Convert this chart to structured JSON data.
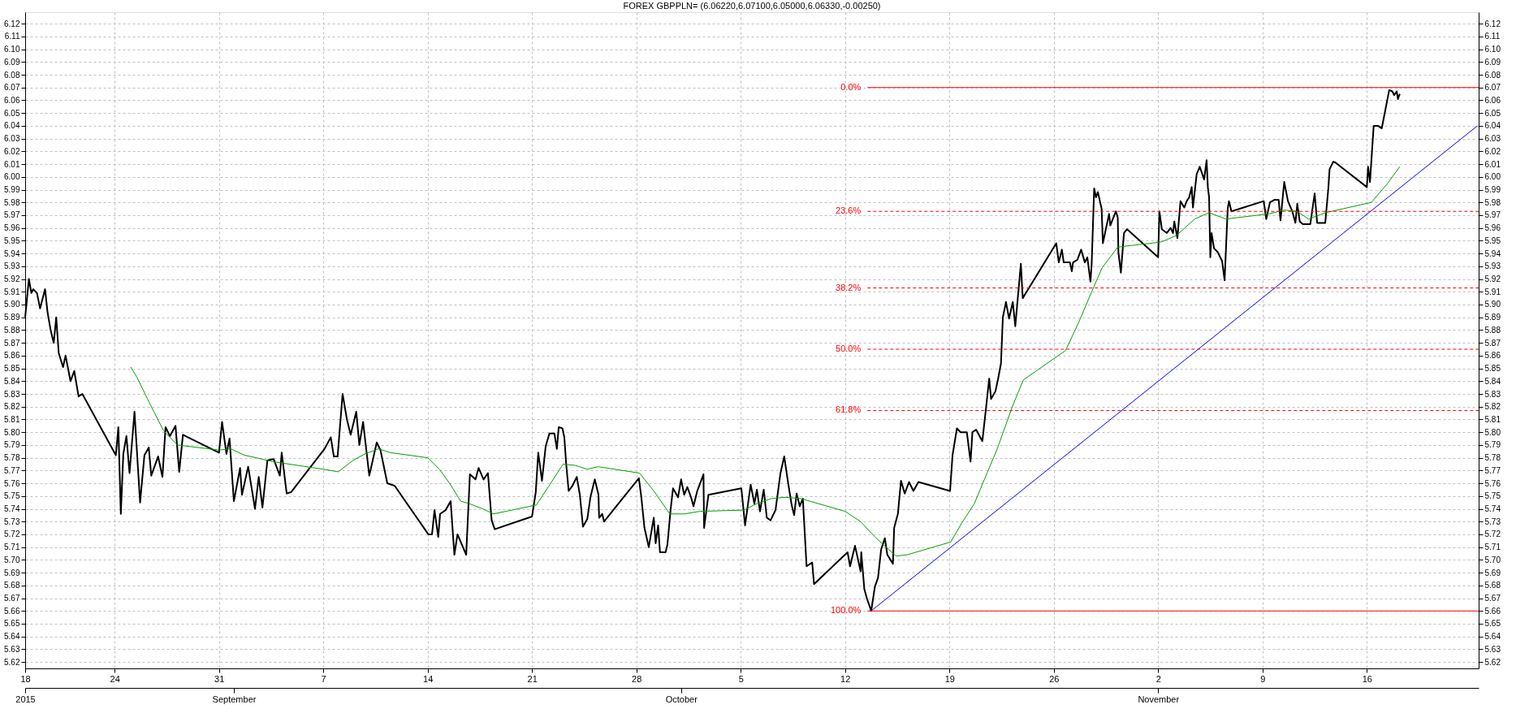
{
  "chart_data": {
    "type": "line",
    "title": "FOREX GBPPLN= (6.06220,6.07100,6.05000,6.06330,-0.00250)",
    "xlim": [
      "2015-08-18T00:00",
      "2015-11-23T12:00"
    ],
    "ylim": [
      5.615,
      6.129
    ],
    "grid": true,
    "xticks": [
      {
        "value": "2015-08-18",
        "label": "18"
      },
      {
        "value": "2015-08-24",
        "label": "24"
      },
      {
        "value": "2015-08-31",
        "label": "31"
      },
      {
        "value": "2015-09-07",
        "label": "7"
      },
      {
        "value": "2015-09-14",
        "label": "14"
      },
      {
        "value": "2015-09-21",
        "label": "21"
      },
      {
        "value": "2015-09-28",
        "label": "28"
      },
      {
        "value": "2015-10-05",
        "label": "5"
      },
      {
        "value": "2015-10-12",
        "label": "12"
      },
      {
        "value": "2015-10-19",
        "label": "19"
      },
      {
        "value": "2015-10-26",
        "label": "26"
      },
      {
        "value": "2015-11-02",
        "label": "2"
      },
      {
        "value": "2015-11-09",
        "label": "9"
      },
      {
        "value": "2015-11-16",
        "label": "16"
      }
    ],
    "yticks": [
      5.62,
      5.63,
      5.64,
      5.65,
      5.66,
      5.67,
      5.68,
      5.69,
      {
        "value": 5.7,
        "label": "5.70"
      },
      5.71,
      5.72,
      5.73,
      5.74,
      5.75,
      5.76,
      5.77,
      5.78,
      5.79,
      {
        "value": 5.8,
        "label": "5.80"
      },
      5.81,
      5.82,
      5.83,
      5.84,
      5.85,
      5.86,
      5.87,
      5.88,
      5.89,
      {
        "value": 5.9,
        "label": "5.90"
      },
      5.91,
      5.92,
      5.93,
      5.94,
      5.95,
      5.96,
      5.97,
      5.98,
      5.99,
      {
        "value": 6.0,
        "label": "6.00"
      },
      6.01,
      6.02,
      6.03,
      6.04,
      6.05,
      6.06,
      6.07,
      6.08,
      6.09,
      {
        "value": 6.1,
        "label": "6.10"
      },
      6.11,
      6.12
    ],
    "y2lim": [
      5.615,
      6.129
    ],
    "y2ticks": [
      5.62,
      5.63,
      5.64,
      5.65,
      5.66,
      5.67,
      5.68,
      5.69,
      {
        "value": 5.7,
        "label": "5.70"
      },
      5.71,
      5.72,
      5.73,
      5.74,
      5.75,
      5.76,
      5.77,
      5.78,
      5.79,
      {
        "value": 5.8,
        "label": "5.80"
      },
      5.81,
      5.82,
      5.83,
      5.84,
      5.85,
      5.86,
      5.87,
      5.88,
      5.89,
      {
        "value": 5.9,
        "label": "5.90"
      },
      5.91,
      5.92,
      5.93,
      5.94,
      5.95,
      5.96,
      5.97,
      5.98,
      5.99,
      {
        "value": 6.0,
        "label": "6.00"
      },
      6.01,
      6.02,
      6.03,
      6.04,
      6.05,
      6.06,
      6.07,
      6.08,
      6.09,
      {
        "value": 6.1,
        "label": "6.10"
      },
      6.11,
      6.12
    ],
    "x2lim": [
      "2015-08-18T00:00",
      "2015-11-23T12:00"
    ],
    "x2ticks": [
      {
        "value": "2015-08-18",
        "label": "2015"
      },
      {
        "value": "2015-09-01",
        "label": "September"
      },
      {
        "value": "2015-10-01",
        "label": "October"
      },
      {
        "value": "2015-11-02",
        "label": "November"
      }
    ],
    "series": [
      {
        "line_style": "solid",
        "color": "#000000",
        "x": [
          "2015-08-18T00:00",
          "2015-08-18T06:00",
          "2015-08-18T10:00",
          "2015-08-18T13:00",
          "2015-08-18T19:00",
          "2015-08-19T00:00",
          "2015-08-19T08:00",
          "2015-08-19T12:00",
          "2015-08-19T17:00",
          "2015-08-19T22:00",
          "2015-08-20T02:00",
          "2015-08-20T06:00",
          "2015-08-20T13:00",
          "2015-08-20T17:00",
          "2015-08-21T01:00",
          "2015-08-21T07:00",
          "2015-08-21T14:00",
          "2015-08-21T20:00",
          "2015-08-24T02:00",
          "2015-08-24T06:00",
          "2015-08-24T10:00",
          "2015-08-24T14:00",
          "2015-08-24T19:00",
          "2015-08-25T00:00",
          "2015-08-25T08:00",
          "2015-08-25T17:00",
          "2015-08-26T00:00",
          "2015-08-26T07:00",
          "2015-08-26T11:00",
          "2015-08-26T22:00",
          "2015-08-27T05:00",
          "2015-08-27T10:00",
          "2015-08-27T17:00",
          "2015-08-28T02:00",
          "2015-08-28T08:00",
          "2015-08-28T14:00",
          "2015-08-31T00:00",
          "2015-08-31T05:00",
          "2015-08-31T12:00",
          "2015-08-31T17:00",
          "2015-09-01T00:00",
          "2015-09-01T10:00",
          "2015-09-01T13:00",
          "2015-09-01T23:00",
          "2015-09-02T10:00",
          "2015-09-02T16:00",
          "2015-09-02T22:00",
          "2015-09-03T06:00",
          "2015-09-03T16:00",
          "2015-09-04T02:00",
          "2015-09-04T05:00",
          "2015-09-04T13:00",
          "2015-09-04T20:00",
          "2015-09-07T02:00",
          "2015-09-07T12:00",
          "2015-09-07T17:00",
          "2015-09-07T23:00",
          "2015-09-08T07:00",
          "2015-09-08T14:00",
          "2015-09-08T20:00",
          "2015-09-09T05:00",
          "2015-09-09T10:00",
          "2015-09-09T16:00",
          "2015-09-10T02:00",
          "2015-09-10T14:00",
          "2015-09-10T20:00",
          "2015-09-11T07:00",
          "2015-09-11T19:00",
          "2015-09-14T01:00",
          "2015-09-14T07:00",
          "2015-09-14T11:00",
          "2015-09-14T17:00",
          "2015-09-14T20:00",
          "2015-09-15T05:00",
          "2015-09-15T13:00",
          "2015-09-15T19:00",
          "2015-09-16T00:00",
          "2015-09-16T14:00",
          "2015-09-16T20:00",
          "2015-09-17T05:00",
          "2015-09-17T10:00",
          "2015-09-17T18:00",
          "2015-09-18T01:00",
          "2015-09-18T07:00",
          "2015-09-18T12:00",
          "2015-09-21T00:00",
          "2015-09-21T06:00",
          "2015-09-21T10:00",
          "2015-09-21T16:00",
          "2015-09-21T22:00",
          "2015-09-22T04:00",
          "2015-09-22T12:00",
          "2015-09-22T16:00",
          "2015-09-22T19:00",
          "2015-09-23T01:00",
          "2015-09-23T04:00",
          "2015-09-23T07:00",
          "2015-09-23T11:00",
          "2015-09-23T17:00",
          "2015-09-24T00:00",
          "2015-09-24T05:00",
          "2015-09-24T10:00",
          "2015-09-24T17:00",
          "2015-09-24T22:00",
          "2015-09-25T05:00",
          "2015-09-25T11:00",
          "2015-09-25T12:00",
          "2015-09-25T17:00",
          "2015-09-25T20:00",
          "2015-09-28T04:00",
          "2015-09-28T08:00",
          "2015-09-28T13:00",
          "2015-09-28T20:00",
          "2015-09-29T04:00",
          "2015-09-29T07:00",
          "2015-09-29T11:00",
          "2015-09-29T14:00",
          "2015-09-29T23:00",
          "2015-09-30T02:00",
          "2015-09-30T07:00",
          "2015-09-30T11:00",
          "2015-09-30T19:00",
          "2015-10-01T00:00",
          "2015-10-01T05:00",
          "2015-10-01T10:00",
          "2015-10-01T16:00",
          "2015-10-01T20:00",
          "2015-10-02T02:00",
          "2015-10-02T12:00",
          "2015-10-02T13:00",
          "2015-10-02T20:00",
          "2015-10-05T01:00",
          "2015-10-05T07:00",
          "2015-10-05T16:00",
          "2015-10-05T22:00",
          "2015-10-06T02:00",
          "2015-10-06T07:00",
          "2015-10-06T13:00",
          "2015-10-06T18:00",
          "2015-10-07T00:00",
          "2015-10-07T08:00",
          "2015-10-07T16:00",
          "2015-10-07T22:00",
          "2015-10-08T05:00",
          "2015-10-08T10:00",
          "2015-10-08T14:00",
          "2015-10-08T18:00",
          "2015-10-08T23:00",
          "2015-10-09T04:00",
          "2015-10-09T10:00",
          "2015-10-09T19:00",
          "2015-10-09T22:00",
          "2015-10-12T04:00",
          "2015-10-12T08:00",
          "2015-10-12T16:00",
          "2015-10-13T01:00",
          "2015-10-13T02:00",
          "2015-10-13T07:00",
          "2015-10-13T11:00",
          "2015-10-13T18:00",
          "2015-10-14T00:00",
          "2015-10-14T05:00",
          "2015-10-14T10:00",
          "2015-10-14T16:00",
          "2015-10-14T20:00",
          "2015-10-15T05:00",
          "2015-10-15T07:00",
          "2015-10-15T13:00",
          "2015-10-15T18:00",
          "2015-10-16T00:00",
          "2015-10-16T07:00",
          "2015-10-16T14:00",
          "2015-10-16T22:00",
          "2015-10-19T01:00",
          "2015-10-19T05:00",
          "2015-10-19T12:00",
          "2015-10-19T18:00",
          "2015-10-20T04:00",
          "2015-10-20T10:00",
          "2015-10-20T13:00",
          "2015-10-20T19:00",
          "2015-10-21T05:00",
          "2015-10-21T10:00",
          "2015-10-21T16:00",
          "2015-10-21T19:00",
          "2015-10-22T02:00",
          "2015-10-22T06:00",
          "2015-10-22T11:00",
          "2015-10-22T14:00",
          "2015-10-22T19:00",
          "2015-10-23T00:00",
          "2015-10-23T06:00",
          "2015-10-23T10:00",
          "2015-10-23T19:00",
          "2015-10-23T22:00",
          "2015-10-26T04:00",
          "2015-10-26T08:00",
          "2015-10-26T13:00",
          "2015-10-26T16:00",
          "2015-10-27T02:00",
          "2015-10-27T05:00",
          "2015-10-27T07:00",
          "2015-10-27T14:00",
          "2015-10-27T20:00",
          "2015-10-28T02:00",
          "2015-10-28T06:00",
          "2015-10-28T11:00",
          "2015-10-28T13:00",
          "2015-10-28T17:00",
          "2015-10-28T20:00",
          "2015-10-28T23:00",
          "2015-10-29T05:00",
          "2015-10-29T07:00",
          "2015-10-29T17:00",
          "2015-10-29T19:00",
          "2015-10-30T04:00",
          "2015-10-30T07:00",
          "2015-10-30T08:00",
          "2015-10-30T12:00",
          "2015-10-30T17:00",
          "2015-10-30T22:00",
          "2015-11-02T00:00",
          "2015-11-02T02:00",
          "2015-11-02T06:00",
          "2015-11-02T14:00",
          "2015-11-02T20:00",
          "2015-11-03T00:00",
          "2015-11-03T02:00",
          "2015-11-03T07:00",
          "2015-11-03T12:00",
          "2015-11-03T18:00",
          "2015-11-03T22:00",
          "2015-11-04T02:00",
          "2015-11-04T06:00",
          "2015-11-04T08:00",
          "2015-11-04T14:00",
          "2015-11-04T19:00",
          "2015-11-05T02:00",
          "2015-11-05T06:00",
          "2015-11-05T08:00",
          "2015-11-05T10:00",
          "2015-11-05T12:00",
          "2015-11-05T14:00",
          "2015-11-05T18:00",
          "2015-11-06T00:00",
          "2015-11-06T07:00",
          "2015-11-06T11:00",
          "2015-11-06T16:00",
          "2015-11-06T18:00",
          "2015-11-06T22:00",
          "2015-11-09T02:00",
          "2015-11-09T06:00",
          "2015-11-09T12:00",
          "2015-11-09T19:00",
          "2015-11-10T02:00",
          "2015-11-10T05:00",
          "2015-11-10T11:00",
          "2015-11-10T17:00",
          "2015-11-11T00:00",
          "2015-11-11T05:00",
          "2015-11-11T08:00",
          "2015-11-11T12:00",
          "2015-11-11T17:00",
          "2015-11-12T05:00",
          "2015-11-12T12:00",
          "2015-11-12T16:00",
          "2015-11-13T05:00",
          "2015-11-13T10:00",
          "2015-11-13T12:00",
          "2015-11-13T18:00",
          "2015-11-13T22:00",
          "2015-11-16T00:00",
          "2015-11-16T02:00",
          "2015-11-16T05:00",
          "2015-11-16T11:00",
          "2015-11-16T18:00",
          "2015-11-17T00:00",
          "2015-11-17T06:00",
          "2015-11-17T12:00",
          "2015-11-17T17:00",
          "2015-11-17T20:00",
          "2015-11-18T00:00",
          "2015-11-18T02:00",
          "2015-11-18T05:00"
        ],
        "values": [
          5.89,
          5.92,
          5.909,
          5.912,
          5.909,
          5.897,
          5.912,
          5.894,
          5.88,
          5.87,
          5.89,
          5.862,
          5.851,
          5.86,
          5.84,
          5.848,
          5.828,
          5.83,
          5.782,
          5.804,
          5.736,
          5.783,
          5.797,
          5.768,
          5.816,
          5.745,
          5.782,
          5.788,
          5.766,
          5.781,
          5.765,
          5.804,
          5.797,
          5.805,
          5.769,
          5.798,
          5.784,
          5.808,
          5.783,
          5.795,
          5.746,
          5.772,
          5.751,
          5.773,
          5.74,
          5.765,
          5.741,
          5.778,
          5.779,
          5.766,
          5.784,
          5.752,
          5.753,
          5.787,
          5.796,
          5.781,
          5.781,
          5.83,
          5.81,
          5.798,
          5.816,
          5.79,
          5.808,
          5.766,
          5.792,
          5.786,
          5.76,
          5.758,
          5.72,
          5.72,
          5.739,
          5.718,
          5.736,
          5.739,
          5.746,
          5.704,
          5.72,
          5.704,
          5.767,
          5.763,
          5.772,
          5.763,
          5.768,
          5.731,
          5.724,
          5.734,
          5.753,
          5.784,
          5.762,
          5.789,
          5.799,
          5.799,
          5.787,
          5.804,
          5.803,
          5.796,
          5.775,
          5.754,
          5.758,
          5.765,
          5.751,
          5.726,
          5.732,
          5.749,
          5.763,
          5.751,
          5.733,
          5.736,
          5.73,
          5.764,
          5.749,
          5.725,
          5.71,
          5.733,
          5.713,
          5.727,
          5.706,
          5.706,
          5.712,
          5.739,
          5.756,
          5.749,
          5.763,
          5.751,
          5.757,
          5.749,
          5.742,
          5.754,
          5.767,
          5.725,
          5.751,
          5.756,
          5.727,
          5.759,
          5.744,
          5.755,
          5.738,
          5.755,
          5.733,
          5.731,
          5.739,
          5.768,
          5.781,
          5.758,
          5.743,
          5.735,
          5.752,
          5.742,
          5.748,
          5.695,
          5.698,
          5.681,
          5.706,
          5.695,
          5.711,
          5.691,
          5.706,
          5.677,
          5.67,
          5.66,
          5.679,
          5.686,
          5.708,
          5.717,
          5.704,
          5.697,
          5.725,
          5.736,
          5.762,
          5.752,
          5.761,
          5.754,
          5.761,
          5.754,
          5.782,
          5.803,
          5.8,
          5.8,
          5.777,
          5.8,
          5.802,
          5.793,
          5.815,
          5.842,
          5.826,
          5.832,
          5.841,
          5.854,
          5.89,
          5.902,
          5.889,
          5.902,
          5.883,
          5.932,
          5.905,
          5.948,
          5.933,
          5.943,
          5.933,
          5.933,
          5.926,
          5.933,
          5.935,
          5.943,
          5.933,
          5.937,
          5.918,
          5.932,
          5.991,
          5.984,
          5.988,
          5.975,
          5.948,
          5.971,
          5.962,
          5.973,
          5.968,
          5.941,
          5.925,
          5.956,
          5.959,
          5.937,
          5.973,
          5.959,
          5.956,
          5.96,
          5.956,
          5.965,
          5.952,
          5.981,
          5.976,
          5.981,
          5.984,
          5.992,
          5.976,
          6.002,
          6.008,
          5.998,
          6.013,
          5.992,
          5.984,
          5.937,
          5.956,
          5.944,
          5.941,
          5.934,
          5.919,
          5.975,
          5.981,
          5.973,
          5.981,
          5.967,
          5.98,
          5.982,
          5.982,
          5.966,
          5.996,
          5.981,
          5.973,
          5.964,
          5.979,
          5.965,
          5.963,
          5.963,
          5.987,
          5.964,
          5.964,
          5.991,
          6.006,
          6.012,
          6.011,
          5.992,
          6.008,
          5.996,
          6.04,
          6.04,
          6.038,
          6.053,
          6.068,
          6.067,
          6.064,
          6.067,
          6.061,
          6.065
        ]
      },
      {
        "line_style": "solid",
        "color": "#00a000",
        "x": [
          "2015-08-25T02:00",
          "2015-08-25T12:00",
          "2015-08-26T07:00",
          "2015-08-27T07:00",
          "2015-08-28T05:00",
          "2015-08-31T00:00",
          "2015-08-31T19:00",
          "2015-09-01T17:00",
          "2015-09-02T12:00",
          "2015-09-03T14:00",
          "2015-09-07T00:00",
          "2015-09-08T00:00",
          "2015-09-09T00:00",
          "2015-09-09T19:00",
          "2015-09-10T17:00",
          "2015-09-11T12:00",
          "2015-09-14T00:00",
          "2015-09-14T19:00",
          "2015-09-15T14:00",
          "2015-09-16T05:00",
          "2015-09-16T19:00",
          "2015-09-17T17:00",
          "2015-09-18T10:00",
          "2015-09-21T07:00",
          "2015-09-22T02:00",
          "2015-09-23T02:00",
          "2015-09-23T22:00",
          "2015-09-24T17:00",
          "2015-09-25T10:00",
          "2015-09-28T05:00",
          "2015-09-29T04:00",
          "2015-09-30T06:00",
          "2015-10-01T05:00",
          "2015-10-02T06:00",
          "2015-10-05T05:00",
          "2015-10-06T02:00",
          "2015-10-07T01:00",
          "2015-10-08T00:00",
          "2015-10-09T01:00",
          "2015-10-12T00:00",
          "2015-10-13T01:00",
          "2015-10-14T00:00",
          "2015-10-14T18:00",
          "2015-10-15T10:00",
          "2015-10-16T04:00",
          "2015-10-19T02:00",
          "2015-10-19T20:00",
          "2015-10-20T16:00",
          "2015-10-21T10:00",
          "2015-10-22T05:00",
          "2015-10-23T06:00",
          "2015-10-23T23:00",
          "2015-10-26T19:00",
          "2015-10-27T17:00",
          "2015-10-28T13:00",
          "2015-10-29T06:00",
          "2015-10-30T07:00",
          "2015-11-02T05:00",
          "2015-11-03T05:00",
          "2015-11-04T11:00",
          "2015-11-05T10:00",
          "2015-11-06T13:00",
          "2015-11-09T10:00",
          "2015-11-10T11:00",
          "2015-11-11T08:00",
          "2015-11-12T02:00",
          "2015-11-13T06:00",
          "2015-11-16T07:00",
          "2015-11-17T08:00",
          "2015-11-18T05:00"
        ],
        "values": [
          5.851,
          5.843,
          5.824,
          5.801,
          5.79,
          5.786,
          5.787,
          5.782,
          5.78,
          5.777,
          5.771,
          5.769,
          5.778,
          5.783,
          5.787,
          5.784,
          5.78,
          5.771,
          5.758,
          5.746,
          5.744,
          5.74,
          5.736,
          5.743,
          5.757,
          5.775,
          5.774,
          5.771,
          5.773,
          5.768,
          5.754,
          5.736,
          5.736,
          5.738,
          5.739,
          5.744,
          5.748,
          5.749,
          5.748,
          5.738,
          5.73,
          5.718,
          5.71,
          5.703,
          5.704,
          5.714,
          5.729,
          5.744,
          5.765,
          5.787,
          5.821,
          5.841,
          5.864,
          5.887,
          5.91,
          5.929,
          5.945,
          5.949,
          5.954,
          5.967,
          5.972,
          5.967,
          5.971,
          5.974,
          5.973,
          5.967,
          5.972,
          5.98,
          5.994,
          6.008
        ]
      },
      {
        "line_style": "solid",
        "color": "#0000ff",
        "x": [
          "2015-10-13T18:00",
          "2015-11-23T10:00"
        ],
        "values": [
          5.66,
          6.04
        ]
      },
      {
        "name": "0.0%",
        "line_style": "solid",
        "color": "#ff0000",
        "x": [
          "2015-10-13T12:00",
          "2015-11-23T12:00"
        ],
        "values": [
          6.07,
          6.07
        ]
      },
      {
        "name": "23.6%",
        "line_style": "dashed",
        "color": "#ff0000",
        "x": [
          "2015-10-13T12:00",
          "2015-11-23T12:00"
        ],
        "values": [
          5.973,
          5.973
        ]
      },
      {
        "name": "38.2%",
        "line_style": "dashed",
        "color": "#ff0000",
        "x": [
          "2015-10-13T12:00",
          "2015-11-23T12:00"
        ],
        "values": [
          5.913,
          5.913
        ]
      },
      {
        "name": "50.0%",
        "line_style": "dashed",
        "color": "#ff0000",
        "x": [
          "2015-10-13T12:00",
          "2015-11-23T12:00"
        ],
        "values": [
          5.865,
          5.865
        ]
      },
      {
        "name": "61.8%",
        "line_style": "dashed",
        "color": "#ff0000",
        "x": [
          "2015-10-13T12:00",
          "2015-11-23T12:00"
        ],
        "values": [
          5.817,
          5.817
        ]
      },
      {
        "name": "100.0%",
        "line_style": "solid",
        "color": "#ff0000",
        "x": [
          "2015-10-13T12:00",
          "2015-11-23T12:00"
        ],
        "values": [
          5.66,
          5.66
        ]
      }
    ]
  }
}
